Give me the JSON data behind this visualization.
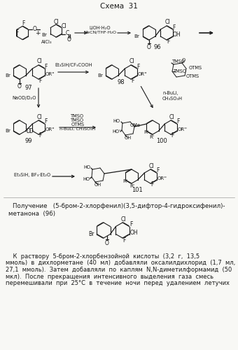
{
  "title": "Схема  31",
  "bg_color": "#f5f5f0",
  "text_color": "#1a1a1a",
  "fig_width": 3.4,
  "fig_height": 5.0,
  "dpi": 100,
  "subtitle_line1": "Получение   (5-бром-2-хлорфенил)(3,5-дифтор-4-гидроксифенил)-",
  "subtitle_line2": "метанона  (96)",
  "body_lines": [
    "    К  раствору  5-бром-2-хлорбензойной  кислоты  (3,2  г,  13,5",
    "ммоль)  в  дихлорметане  (40  мл)  добавляли  оксалилдихлорид  (1,7  мл,",
    "27,1  ммоль).  Затем  добавляли  по  каплям  N,N-диметилформамид  (50",
    "мкл).  После  прекращения  интенсивного  выделения  газа  смесь",
    "перемешивали  при  25°С  в  течение  ночи  перед  удалением  летучих"
  ]
}
